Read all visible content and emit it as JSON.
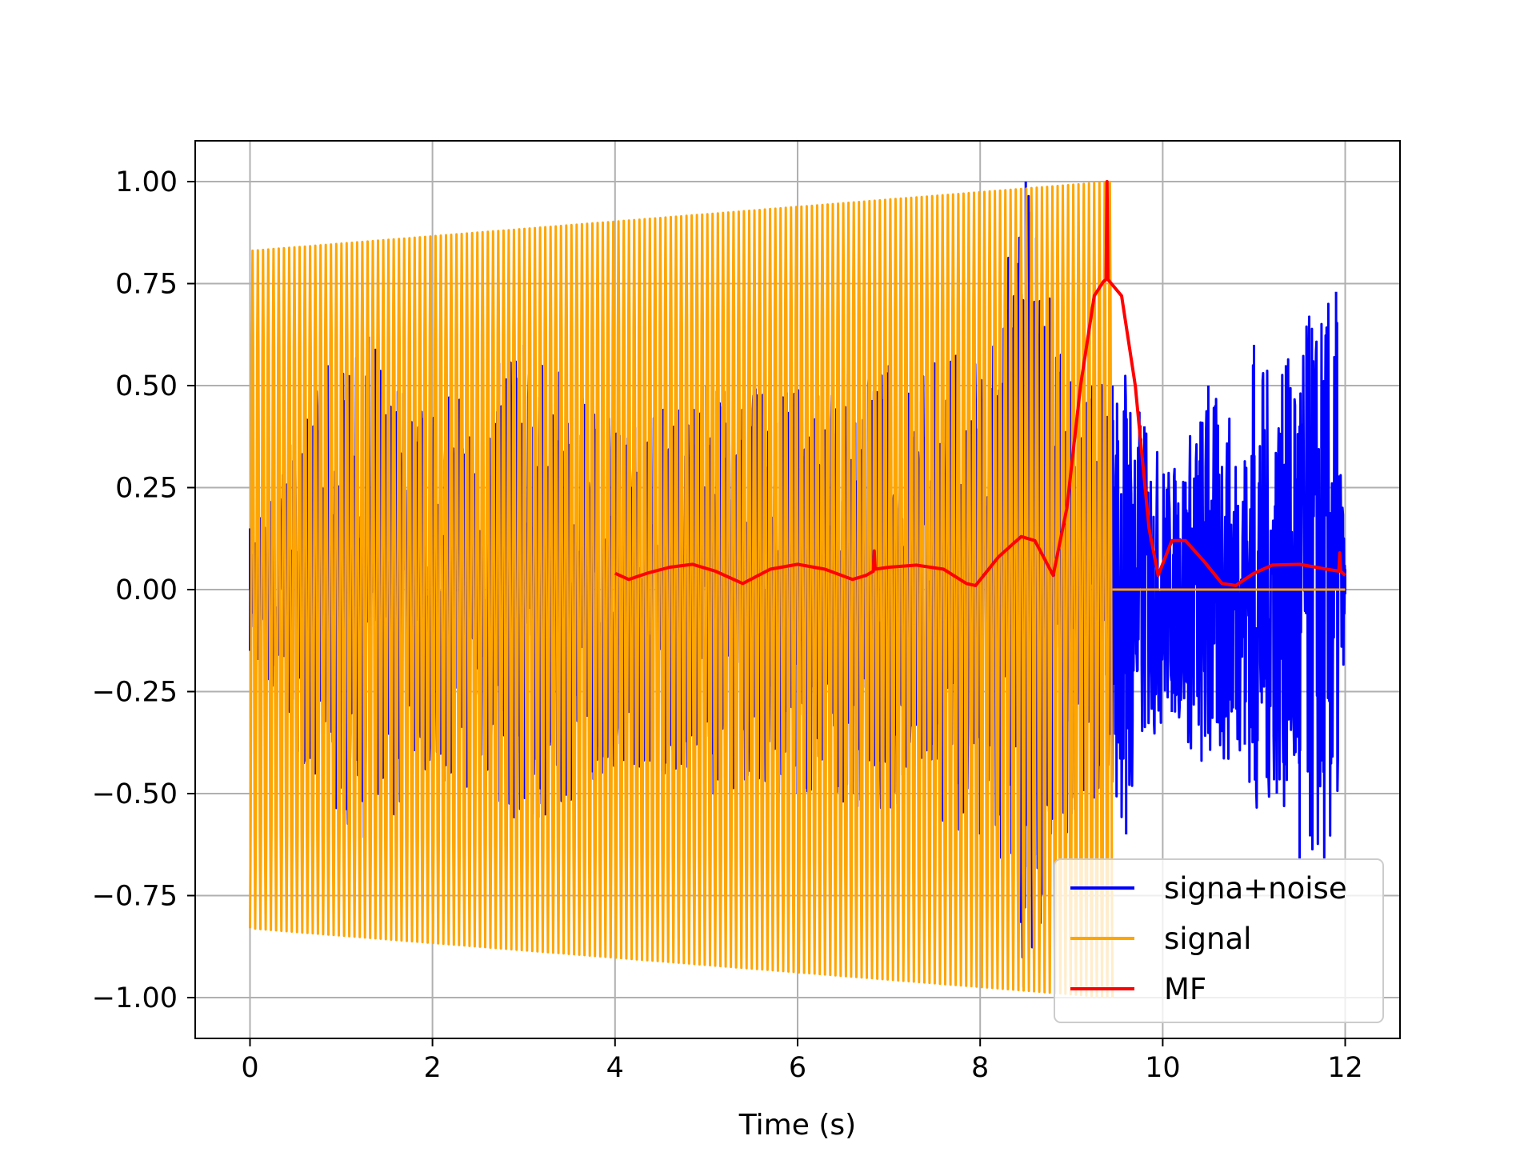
{
  "chart_data": {
    "type": "line",
    "title": "",
    "xlabel": "Time (s)",
    "ylabel": "",
    "xlim": [
      -0.6,
      12.6
    ],
    "ylim": [
      -1.1,
      1.1
    ],
    "x_ticks": [
      0,
      2,
      4,
      6,
      8,
      10,
      12
    ],
    "x_tick_labels": [
      "0",
      "2",
      "4",
      "6",
      "8",
      "10",
      "12"
    ],
    "y_ticks": [
      1.0,
      0.75,
      0.5,
      0.25,
      0.0,
      -0.25,
      -0.5,
      -0.75,
      -1.0
    ],
    "y_tick_labels": [
      "1.00",
      "0.75",
      "0.50",
      "0.25",
      "0.00",
      "−0.25",
      "−0.50",
      "−0.75",
      "−1.00"
    ],
    "grid": true,
    "legend_position": "lower-right",
    "series": [
      {
        "name": "signa+noise",
        "color": "#0000ff",
        "description_points": {
          "x": [
            0.0,
            0.85,
            1.3,
            2.0,
            3.0,
            4.1,
            5.0,
            6.0,
            7.0,
            8.0,
            8.5,
            9.0,
            9.45,
            9.6,
            9.8,
            10.1,
            10.5,
            10.9,
            11.0,
            11.25,
            11.35,
            11.5,
            11.9,
            12.0
          ],
          "y": [
            0.15,
            0.55,
            0.62,
            -0.45,
            0.6,
            -0.42,
            0.5,
            -0.5,
            0.55,
            -0.6,
            1.0,
            -0.55,
            0.5,
            -0.6,
            0.4,
            -0.3,
            0.5,
            -0.38,
            0.6,
            -0.5,
            0.55,
            -0.66,
            0.73,
            0.05
          ]
        }
      },
      {
        "name": "signal",
        "color": "#ffa500",
        "envelope": {
          "start_time": 0.0,
          "end_time": 9.45,
          "amplitude_start": 0.83,
          "amplitude_end": 1.0,
          "cycles": 165,
          "zero_after": 9.45,
          "zero_until": 12.0
        }
      },
      {
        "name": "MF",
        "color": "#ff0000",
        "x": [
          4.0,
          4.15,
          4.35,
          4.6,
          4.85,
          5.1,
          5.4,
          5.7,
          6.0,
          6.3,
          6.6,
          6.75,
          6.83,
          6.84,
          6.85,
          7.0,
          7.3,
          7.6,
          7.85,
          7.95,
          8.2,
          8.45,
          8.6,
          8.8,
          8.95,
          9.1,
          9.25,
          9.35,
          9.38,
          9.39,
          9.4,
          9.55,
          9.7,
          9.85,
          9.95,
          10.1,
          10.25,
          10.45,
          10.65,
          10.8,
          11.0,
          11.2,
          11.5,
          11.8,
          11.93,
          11.94,
          11.95,
          12.0
        ],
        "y": [
          0.04,
          0.025,
          0.04,
          0.055,
          0.062,
          0.045,
          0.015,
          0.05,
          0.062,
          0.05,
          0.025,
          0.035,
          0.045,
          0.095,
          0.05,
          0.055,
          0.06,
          0.05,
          0.015,
          0.01,
          0.08,
          0.13,
          0.12,
          0.035,
          0.2,
          0.5,
          0.72,
          0.755,
          0.76,
          1.0,
          0.76,
          0.72,
          0.5,
          0.15,
          0.035,
          0.12,
          0.12,
          0.07,
          0.015,
          0.01,
          0.04,
          0.06,
          0.062,
          0.05,
          0.045,
          0.09,
          0.045,
          0.035
        ]
      }
    ]
  }
}
